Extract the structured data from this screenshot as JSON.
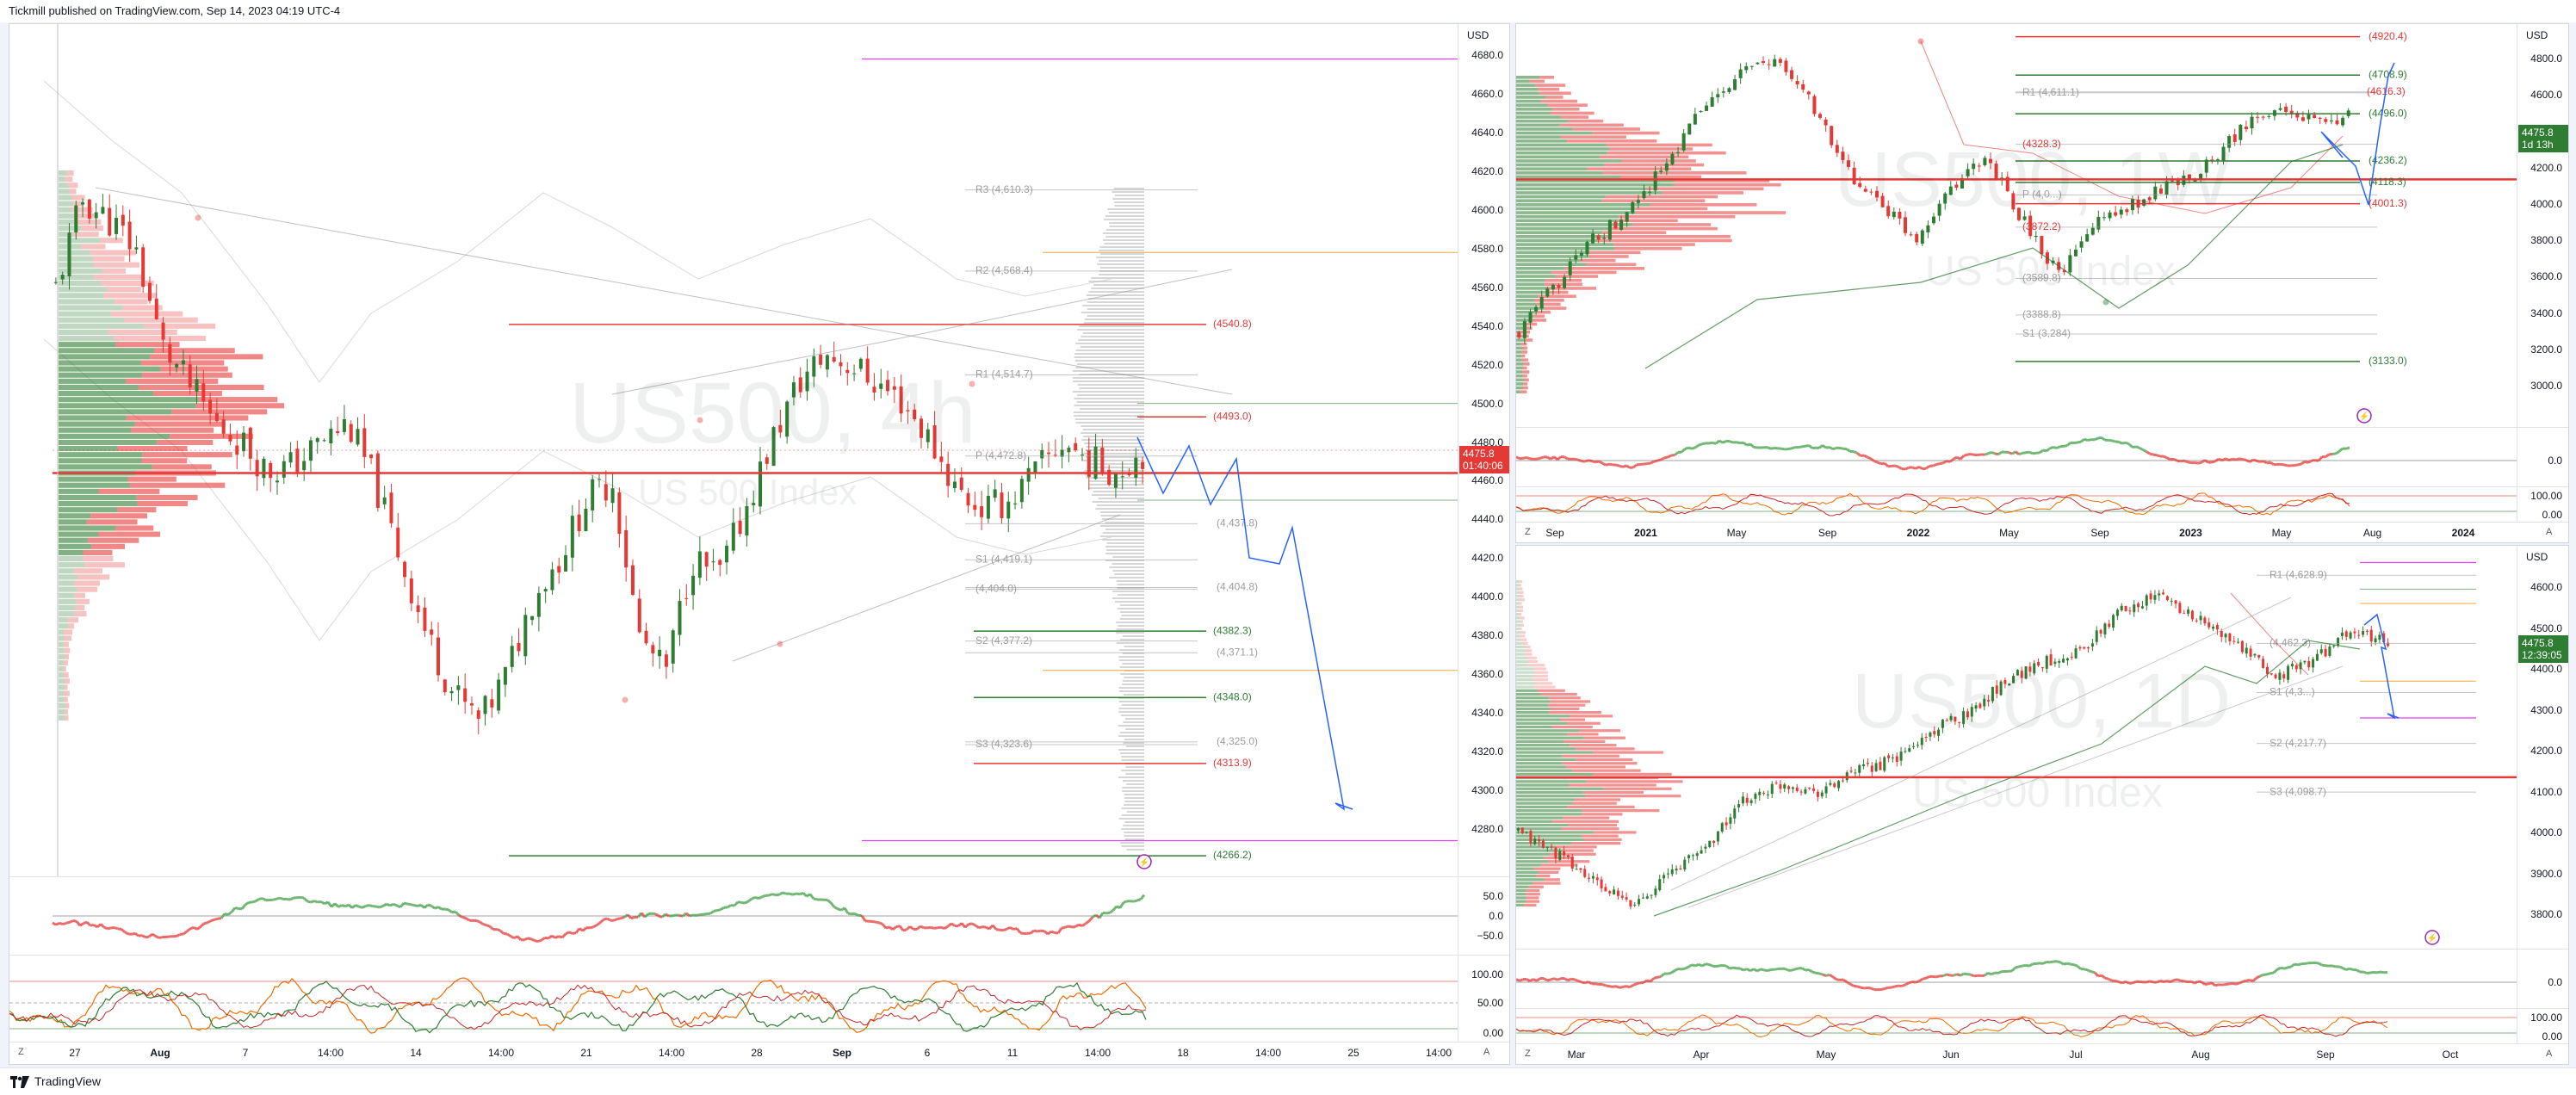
{
  "header": {
    "publisher": "Tickmill published on TradingView.com, Sep 14, 2023 04:19 UTC-4"
  },
  "footer": {
    "brand": "TradingView",
    "brand_icon": "tradingview-logo-icon"
  },
  "colors": {
    "up": "#2e7d32",
    "down": "#e53935",
    "support": "#2e7d32",
    "resistance": "#e53935",
    "projection": "#2962ff",
    "marker": "#9c27b0",
    "orange": "#f7a737",
    "pivot_gray": "#9e9e9e"
  },
  "panels": {
    "left": {
      "symbol": "US500",
      "timeframe": "4h",
      "description": "US 500 Index",
      "currency": "USD",
      "price": "4475.8",
      "countdown": "01:40:06",
      "y_ticks": [
        "4680.0",
        "4660.0",
        "4640.0",
        "4620.0",
        "4600.0",
        "4580.0",
        "4560.0",
        "4540.0",
        "4520.0",
        "4500.0",
        "4480.0",
        "4460.0",
        "4440.0",
        "4420.0",
        "4400.0",
        "4380.0",
        "4360.0",
        "4340.0",
        "4320.0",
        "4300.0",
        "4280.0"
      ],
      "x_ticks": [
        "27",
        "Aug",
        "7",
        "14:00",
        "14",
        "14:00",
        "21",
        "14:00",
        "28",
        "Sep",
        "6",
        "11",
        "14:00",
        "18",
        "14:00",
        "25",
        "14:00"
      ],
      "osc1_ticks": [
        "50.0",
        "0.0",
        "−50.0"
      ],
      "osc2_ticks": [
        "100.00",
        "50.00",
        "0.00"
      ],
      "level_labels": [
        "(4540.8)",
        "(4493.0)",
        "(4382.3)",
        "(4348.0)",
        "(4313.9)",
        "(4266.2)"
      ],
      "pivot_labels": [
        "R3 (4,610.3)",
        "R2 (4,568.4)",
        "R1 (4,514.7)",
        "P (4,472.8)",
        "(4,437.8)",
        "S1 (4,419.1)",
        "(4,404.8)",
        "(4,404.0)",
        "S2 (4,377.2)",
        "(4,371.1)",
        "S3 (4,323.6)",
        "(4,325.0)"
      ],
      "corner_left": "Z",
      "corner_right": "A"
    },
    "top_right": {
      "symbol": "US500",
      "timeframe": "1W",
      "description": "US 500 Index",
      "currency": "USD",
      "price": "4475.8",
      "countdown": "1d 13h",
      "y_ticks": [
        "4800.0",
        "4600.0",
        "4400.0",
        "4200.0",
        "4000.0",
        "3800.0",
        "3600.0",
        "3400.0",
        "3200.0",
        "3000.0"
      ],
      "x_ticks": [
        "Sep",
        "2021",
        "May",
        "Sep",
        "2022",
        "May",
        "Sep",
        "2023",
        "May",
        "Aug",
        "2024"
      ],
      "osc1_ticks": [
        "0.0"
      ],
      "osc2_ticks": [
        "100.00",
        "0.00"
      ],
      "level_labels": [
        "(4920.4)",
        "(4708.9)",
        "(4496.0)",
        "(4236.2)",
        "(4118.3)",
        "(4001.3)",
        "(3133.0)"
      ],
      "pivot_labels": [
        "R1 (4,611.1)",
        "(4616.3)",
        "(4328.3)",
        "P (4,0...)",
        "(3872.2)",
        "(3589.8)",
        "(3388.8)",
        "S1 (3,284)"
      ],
      "corner_left": "Z",
      "corner_right": "A"
    },
    "bottom_right": {
      "symbol": "US500",
      "timeframe": "1D",
      "description": "US 500 Index",
      "currency": "USD",
      "price": "4475.8",
      "countdown": "12:39:05",
      "y_ticks": [
        "4600.0",
        "4500.0",
        "4400.0",
        "4300.0",
        "4200.0",
        "4100.0",
        "4000.0",
        "3900.0",
        "3800.0"
      ],
      "x_ticks": [
        "Mar",
        "Apr",
        "May",
        "Jun",
        "Jul",
        "Aug",
        "Sep",
        "Oct"
      ],
      "osc1_ticks": [
        "0.0"
      ],
      "osc2_ticks": [
        "100.00",
        "0.00"
      ],
      "pivot_labels": [
        "R1 (4,628.9)",
        "(4,462.3)",
        "S1 (4,3...)",
        "S2 (4,217.7)",
        "S3 (4,098.7)"
      ],
      "corner_left": "Z",
      "corner_right": "A"
    }
  }
}
